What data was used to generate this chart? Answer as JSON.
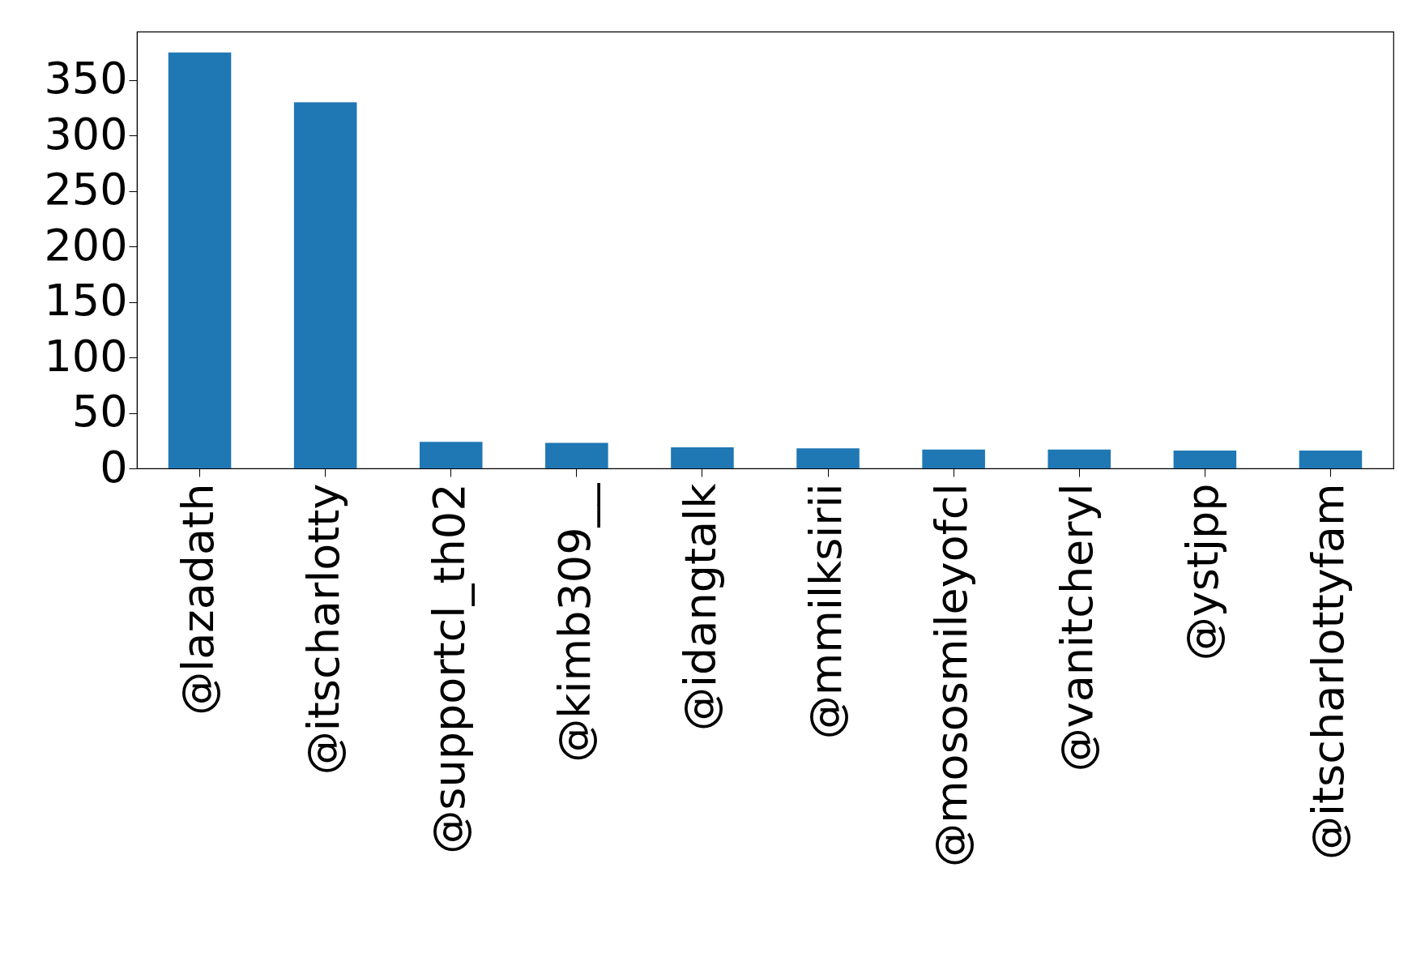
{
  "chart_data": {
    "type": "bar",
    "categories": [
      "@lazadath",
      "@itscharlotty",
      "@supportcl_th02",
      "@kimb309__",
      "@idangtalk",
      "@mmilksirii",
      "@mososmileyofcl",
      "@vanitcheryl",
      "@ystjpp",
      "@itscharlottyfam"
    ],
    "values": [
      375,
      330,
      24,
      23,
      19,
      18,
      17,
      17,
      16,
      16
    ],
    "color": "#1f77b4",
    "ylim": [
      0,
      393.75
    ],
    "yticks": [
      0,
      50,
      100,
      150,
      200,
      250,
      300,
      350
    ],
    "grid": false
  }
}
